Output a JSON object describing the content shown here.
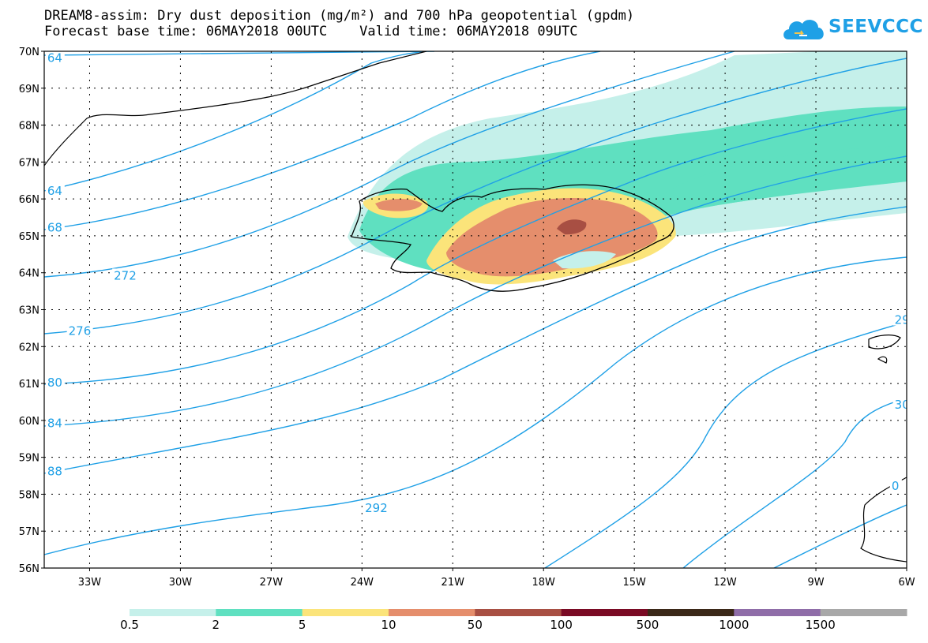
{
  "title_line1": "DREAM8-assim: Dry dust deposition (mg/m²) and 700 hPa geopotential (gpdm)",
  "title_line2": "Forecast base time: 06MAY2018 00UTC    Valid time: 06MAY2018 09UTC",
  "logo_text": "SEEVCCC",
  "map_extent": {
    "lon_min": -34.5,
    "lon_max": -6,
    "lat_min": 56,
    "lat_max": 70
  },
  "lat_ticks": [
    "70N",
    "69N",
    "68N",
    "67N",
    "66N",
    "65N",
    "64N",
    "63N",
    "62N",
    "61N",
    "60N",
    "59N",
    "58N",
    "57N",
    "56N"
  ],
  "lon_ticks": [
    "33W",
    "30W",
    "27W",
    "24W",
    "21W",
    "18W",
    "15W",
    "12W",
    "9W",
    "6W"
  ],
  "contour_labels": [
    {
      "text": "64",
      "lon": -34.4,
      "lat": 69.8
    },
    {
      "text": "64",
      "lon": -34.4,
      "lat": 66.2
    },
    {
      "text": "68",
      "lon": -34.4,
      "lat": 65.2
    },
    {
      "text": "272",
      "lon": -32.2,
      "lat": 63.9
    },
    {
      "text": "276",
      "lon": -33.7,
      "lat": 62.4
    },
    {
      "text": "80",
      "lon": -34.4,
      "lat": 61.0
    },
    {
      "text": "84",
      "lon": -34.4,
      "lat": 59.9
    },
    {
      "text": "88",
      "lon": -34.4,
      "lat": 58.6
    },
    {
      "text": "292",
      "lon": -23.9,
      "lat": 57.6
    },
    {
      "text": "29",
      "lon": -6.4,
      "lat": 62.7
    },
    {
      "text": "30",
      "lon": -6.4,
      "lat": 60.4
    },
    {
      "text": "0",
      "lon": -6.5,
      "lat": 58.2
    }
  ],
  "legend": {
    "labels": [
      "0.5",
      "2",
      "5",
      "10",
      "50",
      "100",
      "500",
      "1000",
      "1500"
    ],
    "colors": [
      "#c5f0ea",
      "#5fe0c0",
      "#fbe47a",
      "#e58e6c",
      "#a84f43",
      "#7a0a24",
      "#3b2818",
      "#8f6da8",
      "#a8a8a8"
    ]
  },
  "colors": {
    "contour": "#1fa0e6",
    "coast": "#000000",
    "grid": "#000000"
  }
}
